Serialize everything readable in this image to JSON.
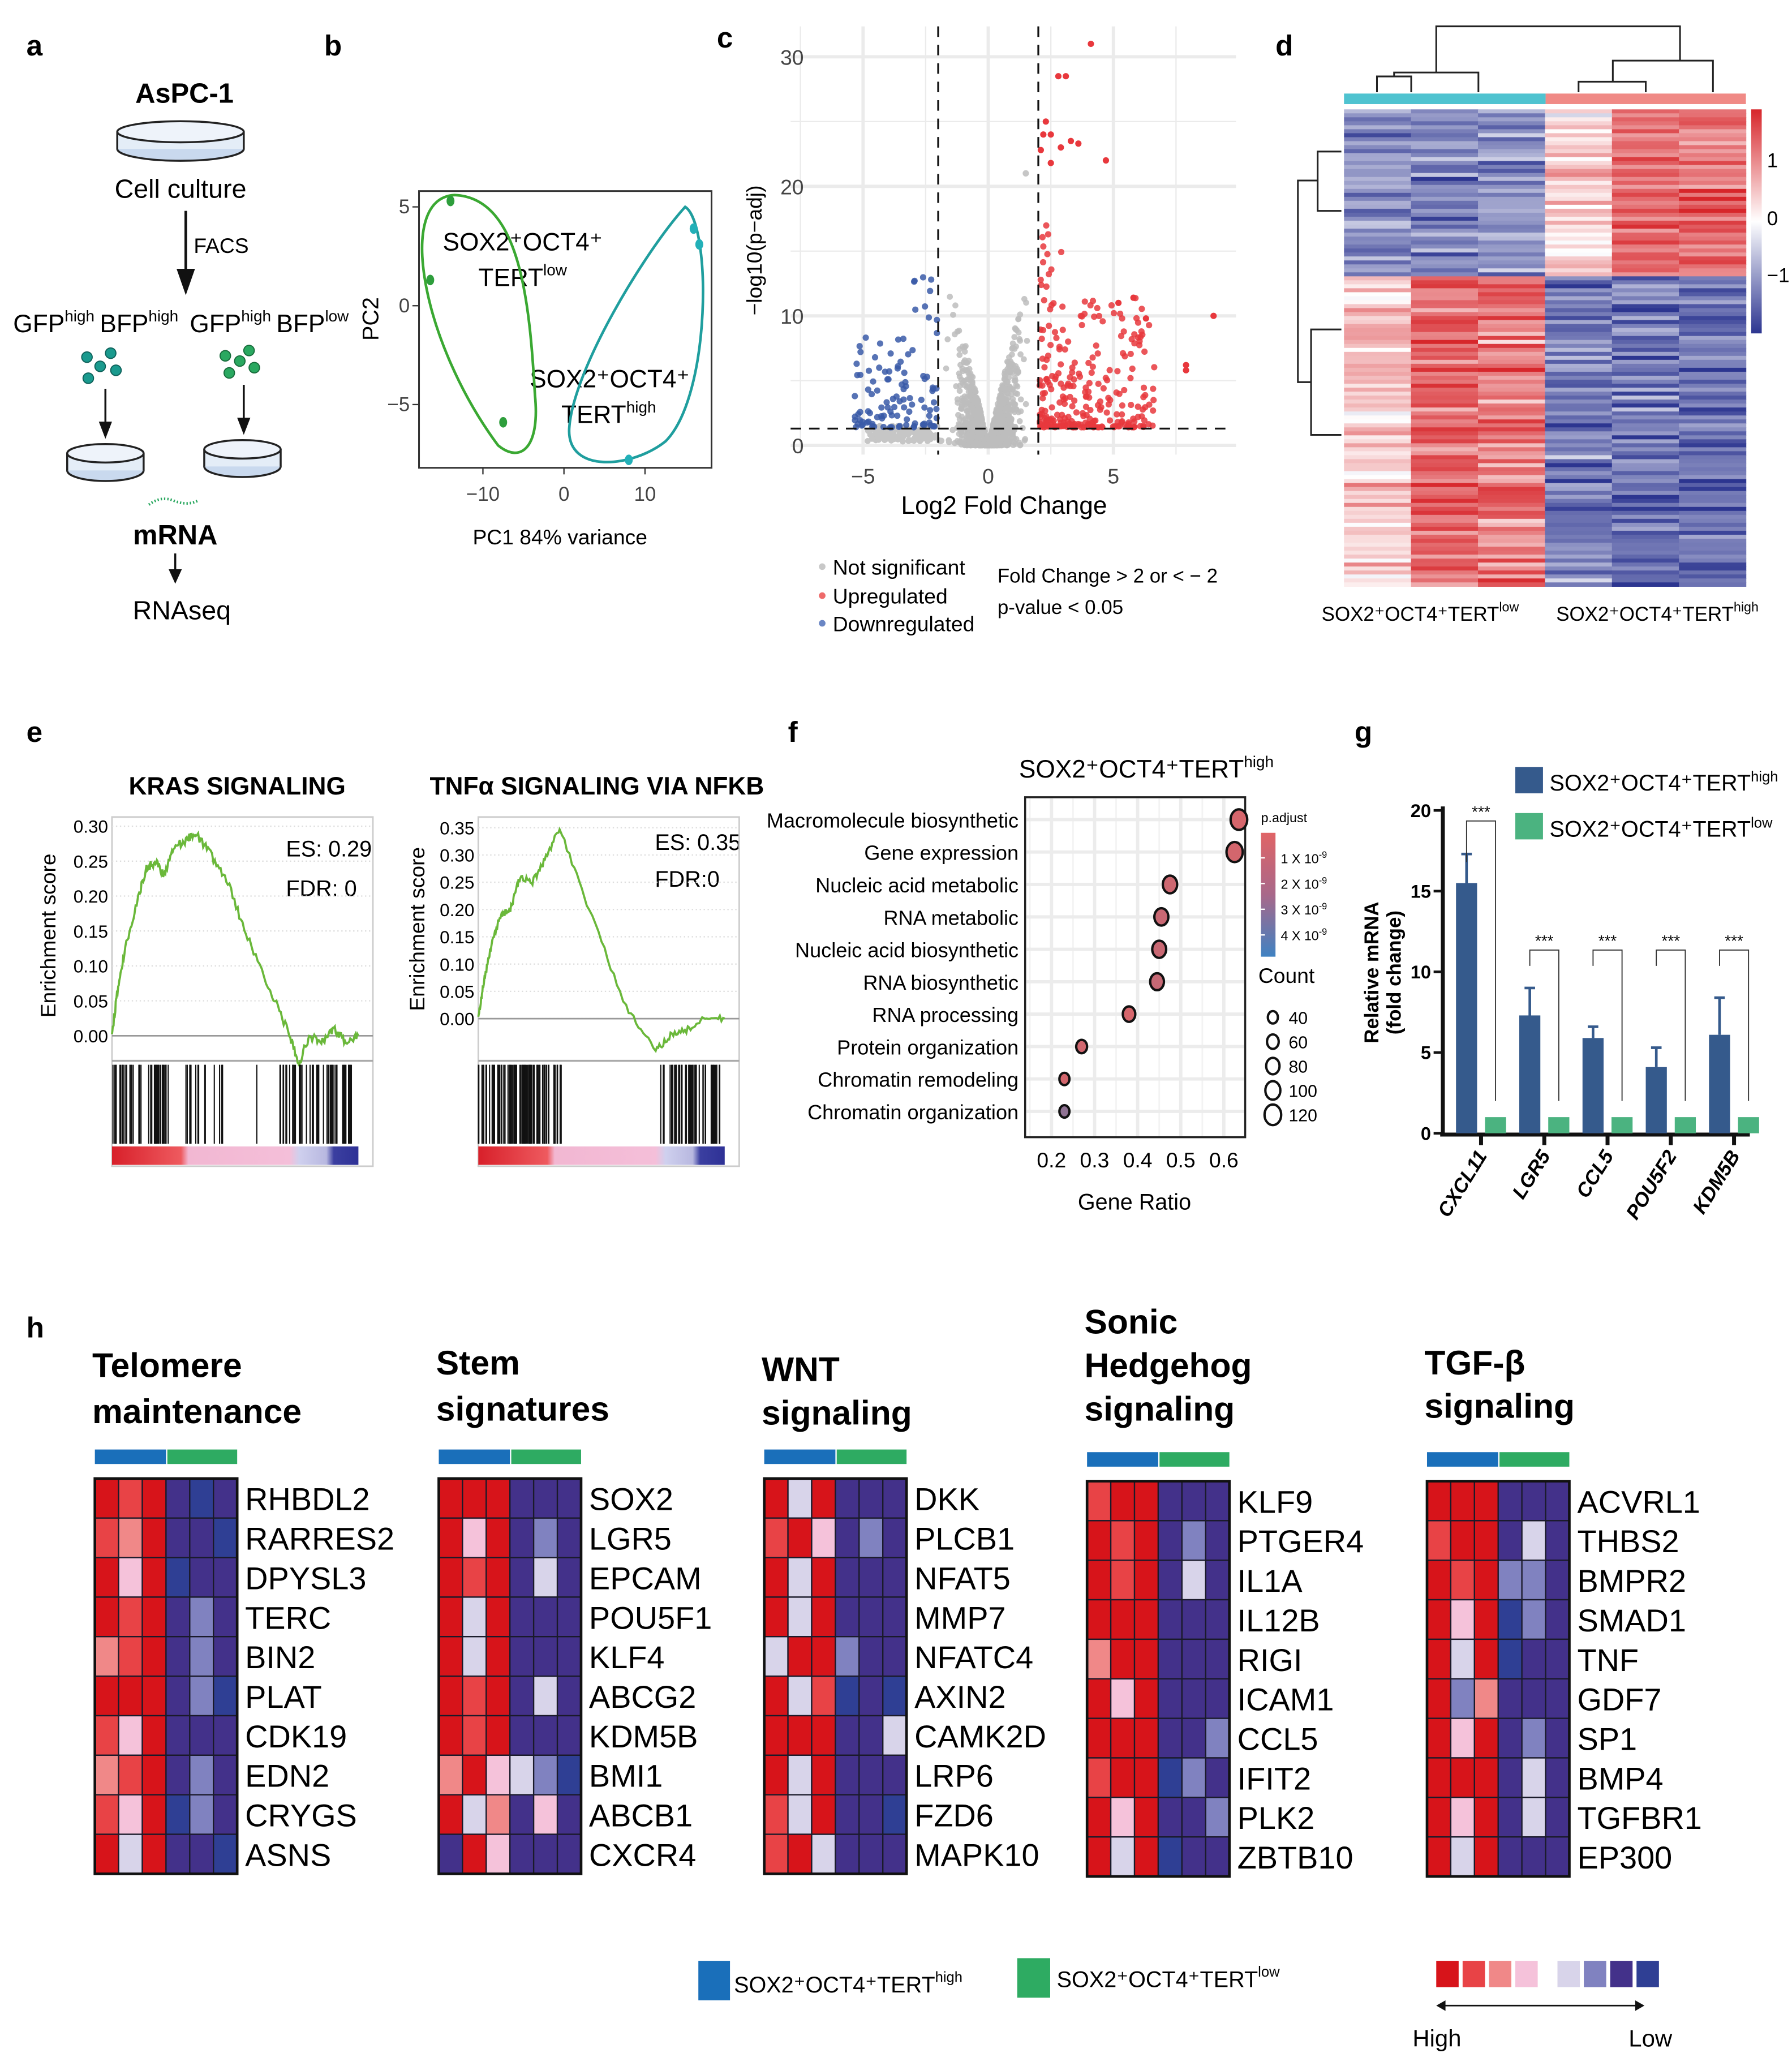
{
  "panel_labels": {
    "a": "a",
    "b": "b",
    "c": "c",
    "d": "d",
    "e": "e",
    "f": "f",
    "g": "g",
    "h": "h"
  },
  "panel_a": {
    "title": "AsPC-1",
    "cell_culture": "Cell culture",
    "facs": "FACS",
    "pop1": {
      "gfp": "GFP",
      "gfp_sup": "high",
      "bfp": "BFP",
      "bfp_sup": "high"
    },
    "pop2": {
      "gfp": "GFP",
      "gfp_sup": "high",
      "bfp": "BFP",
      "bfp_sup": "low"
    },
    "mrna": "mRNA",
    "rnaseq": "RNAseq"
  },
  "labels": {
    "base": "SOX2⁺OCT4⁺TERT",
    "high": "high",
    "low": "low"
  },
  "colors": {
    "high_group": "#1a6fba",
    "low_group": "#2eab62",
    "up": "#e8383d",
    "down": "#3a5ba8",
    "ns": "#bdbdbd",
    "bar_high": "#355a8c",
    "bar_low": "#4bb380"
  },
  "chart_data": [
    {
      "type": "scatter",
      "panel": "b",
      "xlabel": "PC1 84% variance",
      "ylabel": "PC2",
      "xticks": [
        -10,
        0,
        10
      ],
      "yticks": [
        5,
        0,
        -5
      ],
      "groups": [
        {
          "line1": "SOX2⁺OCT4⁺",
          "line2": "TERT",
          "sup": "low",
          "color": "#2e9e3c",
          "points": [
            [
              -14,
              5.3
            ],
            [
              -16.5,
              1.3
            ],
            [
              -7.5,
              -5.9
            ]
          ]
        },
        {
          "line1": "SOX2⁺OCT4⁺",
          "line2": "TERT",
          "sup": "high",
          "color": "#22b0b8",
          "points": [
            [
              16,
              3.9
            ],
            [
              16.7,
              3.1
            ],
            [
              8,
              -7.8
            ]
          ]
        }
      ]
    },
    {
      "type": "scatter",
      "panel": "c",
      "xlabel": "Log2 Fold Change",
      "ylabel": "−log10(p−adj)",
      "xticks": [
        -5,
        0,
        5
      ],
      "yticks": [
        0,
        10,
        20,
        30
      ],
      "xlim": [
        -7,
        10
      ],
      "ylim": [
        0,
        31
      ],
      "fold_change_threshold": 2,
      "pvalue_line": 1.3,
      "legend": [
        "Not significant",
        "Upregulated",
        "Downregulated"
      ],
      "notes": [
        "Fold Change  > 2 or < − 2",
        "p-value < 0.05"
      ],
      "highlighted_points": [
        [
          4.1,
          31
        ],
        [
          2.8,
          28.5
        ],
        [
          3.1,
          28.5
        ],
        [
          2.3,
          25
        ],
        [
          2.2,
          24
        ],
        [
          2.5,
          24
        ],
        [
          2.1,
          22.8
        ],
        [
          2.9,
          23
        ],
        [
          3.3,
          23.5
        ],
        [
          3.6,
          23.3
        ],
        [
          2.5,
          21.8
        ],
        [
          4.7,
          22
        ],
        [
          9,
          10
        ],
        [
          7.9,
          6.2
        ],
        [
          7.9,
          5.8
        ],
        [
          6.3,
          9.8
        ],
        [
          5.8,
          11.4
        ],
        [
          5.2,
          11
        ]
      ]
    },
    {
      "type": "heatmap",
      "panel": "d",
      "columns": [
        "low-1",
        "low-2",
        "low-3",
        "high-1",
        "high-2",
        "high-3"
      ],
      "colorbar_ticks": [
        "1",
        "0",
        "−1"
      ],
      "group_labels": [
        {
          "base": "SOX2⁺OCT4⁺TERT",
          "sup": "low"
        },
        {
          "base": "SOX2⁺OCT4⁺TERT",
          "sup": "high"
        }
      ]
    },
    {
      "type": "line",
      "panel": "e",
      "title": "KRAS SIGNALING",
      "es": "ES: 0.29",
      "fdr": "FDR: 0",
      "ylabel": "Enrichment score",
      "yticks": [
        "0.30",
        "0.25",
        "0.20",
        "0.15",
        "0.10",
        "0.05",
        "0.00"
      ],
      "ylim": [
        -0.06,
        0.31
      ],
      "curve": [
        [
          0,
          0
        ],
        [
          0.02,
          0.06
        ],
        [
          0.05,
          0.12
        ],
        [
          0.1,
          0.19
        ],
        [
          0.14,
          0.24
        ],
        [
          0.18,
          0.25
        ],
        [
          0.21,
          0.23
        ],
        [
          0.25,
          0.27
        ],
        [
          0.3,
          0.28
        ],
        [
          0.34,
          0.29
        ],
        [
          0.4,
          0.26
        ],
        [
          0.47,
          0.22
        ],
        [
          0.55,
          0.14
        ],
        [
          0.65,
          0.06
        ],
        [
          0.72,
          0.0
        ],
        [
          0.76,
          -0.04
        ],
        [
          0.8,
          0.0
        ],
        [
          0.85,
          -0.01
        ],
        [
          0.9,
          0.01
        ],
        [
          0.95,
          -0.01
        ],
        [
          1,
          0
        ]
      ]
    },
    {
      "type": "line",
      "panel": "e",
      "title": "TNFα SIGNALING VIA NFKB",
      "es": "ES: 0.35",
      "fdr": "FDR:0",
      "ylabel": "Enrichment score",
      "yticks": [
        "0.35",
        "0.30",
        "0.25",
        "0.20",
        "0.15",
        "0.10",
        "0.05",
        "0.00"
      ],
      "ylim": [
        -0.07,
        0.36
      ],
      "curve": [
        [
          0,
          0
        ],
        [
          0.02,
          0.06
        ],
        [
          0.05,
          0.13
        ],
        [
          0.09,
          0.19
        ],
        [
          0.13,
          0.2
        ],
        [
          0.17,
          0.26
        ],
        [
          0.22,
          0.25
        ],
        [
          0.27,
          0.29
        ],
        [
          0.33,
          0.35
        ],
        [
          0.45,
          0.2
        ],
        [
          0.6,
          0.02
        ],
        [
          0.72,
          -0.06
        ],
        [
          0.78,
          -0.03
        ],
        [
          0.85,
          -0.02
        ],
        [
          0.92,
          0.0
        ],
        [
          1,
          0.0
        ]
      ]
    },
    {
      "type": "scatter",
      "panel": "f",
      "title_base": "SOX2⁺OCT4⁺TERT",
      "title_sup": "high",
      "xlabel": "Gene Ratio",
      "xticks": [
        0.2,
        0.3,
        0.4,
        0.5,
        0.6
      ],
      "terms": [
        "Macromolecule biosynthetic",
        "Gene expression",
        "Nucleic acid metabolic",
        "RNA metabolic",
        "Nucleic acid biosynthetic",
        "RNA biosynthetic",
        "RNA processing",
        "Protein organization",
        "Chromatin remodeling",
        "Chromatin organization"
      ],
      "gene_ratio": [
        0.635,
        0.625,
        0.475,
        0.455,
        0.45,
        0.445,
        0.38,
        0.27,
        0.23,
        0.23
      ],
      "count": [
        120,
        115,
        92,
        88,
        87,
        85,
        70,
        50,
        40,
        40
      ],
      "p_adjust": [
        3e-10,
        4e-10,
        6e-10,
        7e-10,
        7e-10,
        8e-10,
        3e-10,
        5e-10,
        4e-10,
        2.5e-09
      ],
      "legend_padjust_title": "p.adjust",
      "legend_padjust_ticks": [
        {
          "m": "1 X 10",
          "e": "-9"
        },
        {
          "m": "2 X 10",
          "e": "-9"
        },
        {
          "m": "3 X 10",
          "e": "-9"
        },
        {
          "m": "4 X 10",
          "e": "-9"
        }
      ],
      "legend_count_title": "Count",
      "legend_count": [
        40,
        60,
        80,
        100,
        120
      ]
    },
    {
      "type": "bar",
      "panel": "g",
      "categories": [
        "CXCL11",
        "LGR5",
        "CCL5",
        "POU5F2",
        "KDM5B"
      ],
      "series": [
        {
          "name": "SOX2⁺OCT4⁺TERT",
          "sup": "high",
          "values": [
            15.5,
            7.3,
            5.9,
            4.1,
            6.1
          ],
          "errors": [
            1.8,
            1.7,
            0.7,
            1.2,
            2.3
          ]
        },
        {
          "name": "SOX2⁺OCT4⁺TERT",
          "sup": "low",
          "values": [
            1,
            1,
            1,
            1,
            1
          ]
        }
      ],
      "significance": [
        "***",
        "***",
        "***",
        "***",
        "***"
      ],
      "ylabel": [
        "Relative mRNA",
        "(fold change)"
      ],
      "yticks": [
        0,
        5,
        10,
        15,
        20
      ],
      "ylim": [
        0,
        20
      ]
    },
    {
      "type": "heatmap",
      "panel": "h",
      "palette": [
        "#d7141a",
        "#e84346",
        "#f08888",
        "#f5c2da",
        "#d8d4ea",
        "#8082c0",
        "#43318a",
        "#2f3f94"
      ],
      "legend": {
        "high": "High",
        "low": "Low",
        "group_high": {
          "base": "SOX2⁺OCT4⁺TERT",
          "sup": "high"
        },
        "group_low": {
          "base": "SOX2⁺OCT4⁺TERT",
          "sup": "low"
        }
      },
      "groups": [
        {
          "title": [
            "Telomere",
            "maintenance"
          ],
          "genes": [
            "RHBDL2",
            "RARRES2",
            "DPYSL3",
            "TERC",
            "BIN2",
            "PLAT",
            "CDK19",
            "EDN2",
            "CRYGS",
            "ASNS"
          ],
          "levels": [
            "010676",
            "120667",
            "030766",
            "010656",
            "210656",
            "000657",
            "130666",
            "210656",
            "130756",
            "040667"
          ]
        },
        {
          "title": [
            "Stem",
            "signatures"
          ],
          "genes": [
            "SOX2",
            "LGR5",
            "EPCAM",
            "POU5F1",
            "KLF4",
            "ABCG2",
            "KDM5B",
            "BMI1",
            "ABCB1",
            "CXCR4"
          ],
          "levels": [
            "000666",
            "030656",
            "010646",
            "040666",
            "040666",
            "010646",
            "010666",
            "203457",
            "042636",
            "603666"
          ]
        },
        {
          "title": [
            "WNT",
            "signaling"
          ],
          "genes": [
            "DKK",
            "PLCB1",
            "NFAT5",
            "MMP7",
            "NFATC4",
            "AXIN2",
            "CAMK2D",
            "LRP6",
            "FZD6",
            "MAPK10"
          ],
          "levels": [
            "040666",
            "103656",
            "040666",
            "040666",
            "400566",
            "041767",
            "000664",
            "040666",
            "140667",
            "104666"
          ]
        },
        {
          "title": [
            "Sonic",
            "Hedgehog",
            "signaling"
          ],
          "genes": [
            "KLF9",
            "PTGER4",
            "IL1A",
            "IL12B",
            "RIGI",
            "ICAM1",
            "CCL5",
            "IFIT2",
            "PLK2",
            "ZBTB10"
          ],
          "levels": [
            "100666",
            "010656",
            "010646",
            "000666",
            "200666",
            "030666",
            "000665",
            "100756",
            "030665",
            "040766"
          ]
        },
        {
          "title": [
            "TGF-β",
            "signaling"
          ],
          "genes": [
            "ACVRL1",
            "THBS2",
            "BMPR2",
            "SMAD1",
            "TNF",
            "GDF7",
            "SP1",
            "BMP4",
            "TGFBR1",
            "EP300"
          ],
          "levels": [
            "000666",
            "100646",
            "010556",
            "030756",
            "040766",
            "052666",
            "030656",
            "000646",
            "030646",
            "040666"
          ]
        }
      ]
    }
  ]
}
